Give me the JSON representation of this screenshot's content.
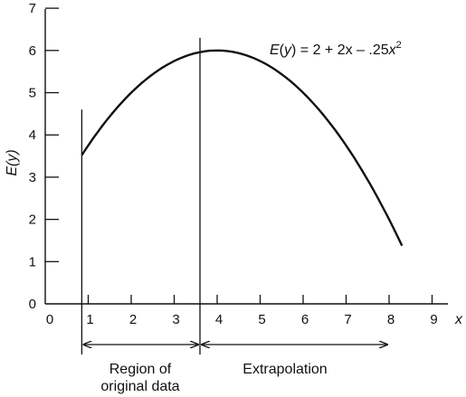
{
  "chart_data": {
    "type": "line",
    "equation_parts": [
      "E",
      "(",
      "y",
      ")",
      " = 2 + 2x – .25",
      "x",
      "2"
    ],
    "xlabel": "x",
    "ylabel": "E(y)",
    "xlim": [
      0,
      9.5
    ],
    "ylim": [
      0,
      7
    ],
    "xticks": [
      0,
      1,
      2,
      3,
      4,
      5,
      6,
      7,
      8,
      9
    ],
    "yticks": [
      0,
      1,
      2,
      3,
      4,
      5,
      6,
      7
    ],
    "series": [
      {
        "x_start": 0.85,
        "x_end": 8.3,
        "coefficients": [
          2,
          2,
          -0.25
        ]
      }
    ],
    "boundaries": [
      {
        "x": 0.85,
        "y_top": 4.6
      },
      {
        "x": 3.6,
        "y_top": 6.3
      }
    ],
    "regions": [
      {
        "label_lines": [
          "Region of",
          "original data"
        ],
        "x_start": 0.85,
        "x_end": 3.6
      },
      {
        "label_lines": [
          "Extrapolation"
        ],
        "x_start": 3.6,
        "x_end": 8.0
      }
    ],
    "grid": false,
    "legend": "none"
  }
}
